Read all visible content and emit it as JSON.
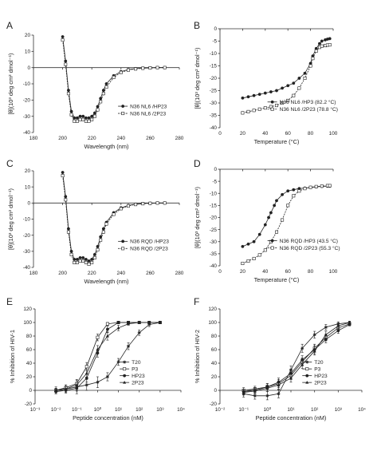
{
  "chart_data": [
    {
      "panel": "A",
      "type": "line",
      "xlabel": "Wavelength (nm)",
      "ylabel": "[θ](10³ deg cm² dmol⁻¹)",
      "xlim": [
        180,
        280
      ],
      "ylim": [
        -40,
        20
      ],
      "xticks": [
        180,
        200,
        220,
        240,
        260,
        280
      ],
      "yticks": [
        20,
        10,
        0,
        -10,
        -20,
        -30,
        -40
      ],
      "legend_position": "right",
      "series": [
        {
          "name": "N36 NL6 /HP23",
          "marker": "filled",
          "x": [
            200,
            202,
            204,
            206,
            208,
            210,
            212,
            214,
            216,
            218,
            220,
            222,
            224,
            226,
            228,
            230,
            235,
            240,
            245,
            250,
            255,
            260,
            265,
            270
          ],
          "y": [
            19,
            4,
            -14,
            -27,
            -31,
            -31,
            -30,
            -30,
            -31,
            -31,
            -30,
            -28,
            -24,
            -19,
            -14,
            -10,
            -5,
            -2.5,
            -1.2,
            -0.6,
            -0.3,
            -0.1,
            0,
            0
          ]
        },
        {
          "name": "N36 NL6 /2P23",
          "marker": "open",
          "x": [
            200,
            202,
            204,
            206,
            208,
            210,
            212,
            214,
            216,
            218,
            220,
            222,
            224,
            226,
            228,
            230,
            235,
            240,
            245,
            250,
            255,
            260,
            265,
            270
          ],
          "y": [
            17,
            2,
            -16,
            -29,
            -33,
            -33,
            -32,
            -32,
            -33,
            -33,
            -32,
            -30,
            -26,
            -21,
            -16,
            -12,
            -6,
            -3,
            -1.5,
            -0.8,
            -0.4,
            -0.2,
            0,
            0
          ]
        }
      ]
    },
    {
      "panel": "B",
      "type": "line",
      "xlabel": "Temperature (°C)",
      "ylabel": "[θ](10³ deg cm² dmol⁻¹)",
      "xlim": [
        0,
        100
      ],
      "ylim": [
        -40,
        0
      ],
      "xticks": [
        0,
        20,
        40,
        60,
        80,
        100
      ],
      "yticks": [
        0,
        -5,
        -10,
        -15,
        -20,
        -25,
        -30,
        -35,
        -40
      ],
      "legend_position": "bottom-right",
      "series": [
        {
          "name": "N36 NL6 /HP3 (82.2 °C)",
          "marker": "filled",
          "x": [
            20,
            25,
            30,
            35,
            40,
            45,
            50,
            55,
            60,
            65,
            70,
            75,
            80,
            82,
            85,
            88,
            90,
            93,
            95,
            97
          ],
          "y": [
            -28,
            -27.5,
            -27,
            -26.5,
            -26,
            -25.5,
            -25,
            -24,
            -23,
            -22,
            -20,
            -18,
            -14,
            -11,
            -8,
            -6,
            -5,
            -4.5,
            -4.2,
            -4
          ]
        },
        {
          "name": "N36 NL6 /2P23 (78.8 °C)",
          "marker": "open",
          "x": [
            20,
            25,
            30,
            35,
            40,
            45,
            50,
            55,
            60,
            65,
            70,
            75,
            80,
            82,
            85,
            88,
            90,
            93,
            95,
            97
          ],
          "y": [
            -34,
            -33.5,
            -33,
            -32.5,
            -32,
            -31.5,
            -31,
            -30,
            -29,
            -27,
            -24,
            -20,
            -15,
            -12,
            -9,
            -7.5,
            -7,
            -6.8,
            -6.6,
            -6.5
          ]
        }
      ]
    },
    {
      "panel": "C",
      "type": "line",
      "xlabel": "Wavelength (nm)",
      "ylabel": "[θ](10³ deg cm² dmol⁻¹)",
      "xlim": [
        180,
        280
      ],
      "ylim": [
        -40,
        20
      ],
      "xticks": [
        180,
        200,
        220,
        240,
        260,
        280
      ],
      "yticks": [
        20,
        10,
        0,
        -10,
        -20,
        -30,
        -40
      ],
      "legend_position": "right",
      "series": [
        {
          "name": "N36 RQD /HP23",
          "marker": "filled",
          "x": [
            200,
            202,
            204,
            206,
            208,
            210,
            212,
            214,
            216,
            218,
            220,
            222,
            224,
            226,
            228,
            230,
            235,
            240,
            245,
            250,
            255,
            260,
            265,
            270
          ],
          "y": [
            19,
            4,
            -16,
            -30,
            -35,
            -35,
            -34,
            -34,
            -35,
            -36,
            -35,
            -32,
            -27,
            -21,
            -16,
            -12,
            -6,
            -3,
            -1.5,
            -0.7,
            -0.3,
            -0.1,
            0,
            0
          ]
        },
        {
          "name": "N36 RQD /2P23",
          "marker": "open",
          "x": [
            200,
            202,
            204,
            206,
            208,
            210,
            212,
            214,
            216,
            218,
            220,
            222,
            224,
            226,
            228,
            230,
            235,
            240,
            245,
            250,
            255,
            260,
            265,
            270
          ],
          "y": [
            17,
            2,
            -18,
            -32,
            -37,
            -37,
            -36,
            -36,
            -37,
            -38,
            -37,
            -34,
            -29,
            -23,
            -18,
            -13,
            -7,
            -3.5,
            -1.8,
            -0.9,
            -0.4,
            -0.2,
            0,
            0
          ]
        }
      ]
    },
    {
      "panel": "D",
      "type": "line",
      "xlabel": "Temperature (°C)",
      "ylabel": "[θ](10³ deg cm² dmol⁻¹)",
      "xlim": [
        0,
        100
      ],
      "ylim": [
        -40,
        0
      ],
      "xticks": [
        0,
        20,
        40,
        60,
        80,
        100
      ],
      "yticks": [
        0,
        -5,
        -10,
        -15,
        -20,
        -25,
        -30,
        -35,
        -40
      ],
      "legend_position": "bottom-right",
      "series": [
        {
          "name": "N36 RQD /HP3 (43.5 °C)",
          "marker": "filled",
          "x": [
            20,
            25,
            30,
            35,
            40,
            43,
            45,
            48,
            50,
            55,
            60,
            65,
            70,
            75,
            80,
            85,
            90,
            95,
            97
          ],
          "y": [
            -32,
            -31,
            -30,
            -27,
            -23,
            -20,
            -18,
            -15,
            -13,
            -10.5,
            -9,
            -8.5,
            -8,
            -7.8,
            -7.5,
            -7.3,
            -7.1,
            -7,
            -7
          ]
        },
        {
          "name": "N36 RQD /2P23 (55.3 °C)",
          "marker": "open",
          "x": [
            20,
            25,
            30,
            35,
            40,
            45,
            50,
            55,
            60,
            65,
            70,
            75,
            80,
            85,
            90,
            95,
            97
          ],
          "y": [
            -39,
            -38,
            -37,
            -35.5,
            -33.5,
            -30,
            -26,
            -21,
            -15,
            -11,
            -9,
            -8,
            -7.5,
            -7.2,
            -7,
            -6.8,
            -6.8
          ]
        }
      ]
    },
    {
      "panel": "E",
      "type": "line",
      "xscale": "log",
      "xlabel": "Peptide concentration (nM)",
      "ylabel": "% Inhibition of HIV-1",
      "xlim": [
        0.001,
        10000
      ],
      "ylim": [
        -20,
        120
      ],
      "xticks": [
        "10⁻³",
        "10⁻²",
        "10⁻¹",
        "10⁰",
        "10¹",
        "10²",
        "10³",
        "10⁴"
      ],
      "yticks": [
        120,
        100,
        80,
        60,
        40,
        20,
        0,
        -20
      ],
      "legend_position": "right",
      "series": [
        {
          "name": "T20",
          "marker": "star",
          "x": [
            0.01,
            0.03,
            0.1,
            0.3,
            1,
            3,
            10,
            30,
            100,
            300,
            1000
          ],
          "y": [
            0,
            2,
            5,
            8,
            12,
            20,
            42,
            65,
            85,
            97,
            100
          ],
          "err": [
            5,
            6,
            10,
            8,
            8,
            6,
            5,
            5,
            4,
            3,
            0
          ]
        },
        {
          "name": "P3",
          "marker": "open",
          "x": [
            0.01,
            0.03,
            0.1,
            0.3,
            1,
            3,
            10,
            30,
            100,
            300,
            1000
          ],
          "y": [
            0,
            4,
            10,
            35,
            78,
            98,
            100,
            100,
            100,
            100,
            100
          ],
          "err": [
            3,
            4,
            6,
            6,
            5,
            2,
            0,
            0,
            0,
            0,
            0
          ]
        },
        {
          "name": "HP23",
          "marker": "filled",
          "x": [
            0.01,
            0.03,
            0.1,
            0.3,
            1,
            3,
            10,
            30,
            100,
            300,
            1000
          ],
          "y": [
            -2,
            0,
            3,
            18,
            55,
            90,
            100,
            100,
            100,
            100,
            100
          ],
          "err": [
            3,
            3,
            4,
            6,
            6,
            5,
            0,
            0,
            0,
            0,
            0
          ]
        },
        {
          "name": "2P23",
          "marker": "triangle",
          "x": [
            0.01,
            0.03,
            0.1,
            0.3,
            1,
            3,
            10,
            30,
            100,
            300,
            1000
          ],
          "y": [
            0,
            2,
            8,
            25,
            60,
            80,
            92,
            98,
            100,
            100,
            100
          ],
          "err": [
            3,
            3,
            4,
            6,
            6,
            6,
            4,
            2,
            0,
            0,
            0
          ]
        }
      ]
    },
    {
      "panel": "F",
      "type": "line",
      "xscale": "log",
      "xlabel": "Peptide concentration (nM)",
      "ylabel": "% Inhibition of HIV-2",
      "xlim": [
        0.01,
        10000
      ],
      "ylim": [
        -20,
        120
      ],
      "xticks": [
        "10⁻²",
        "10⁻¹",
        "10⁰",
        "10¹",
        "10²",
        "10³",
        "10⁴"
      ],
      "yticks": [
        120,
        100,
        80,
        60,
        40,
        20,
        0,
        -20
      ],
      "legend_position": "right",
      "series": [
        {
          "name": "T20",
          "marker": "star",
          "x": [
            0.1,
            0.3,
            1,
            3,
            10,
            30,
            100,
            300,
            1000,
            3000
          ],
          "y": [
            -5,
            -8,
            -8,
            -5,
            30,
            62,
            82,
            93,
            98,
            100
          ],
          "err": [
            5,
            5,
            6,
            6,
            6,
            6,
            5,
            4,
            3,
            0
          ]
        },
        {
          "name": "P3",
          "marker": "open",
          "x": [
            0.1,
            0.3,
            1,
            3,
            10,
            30,
            100,
            300,
            1000,
            3000
          ],
          "y": [
            0,
            2,
            5,
            10,
            22,
            42,
            62,
            78,
            92,
            98
          ],
          "err": [
            4,
            4,
            5,
            6,
            6,
            6,
            6,
            5,
            4,
            2
          ]
        },
        {
          "name": "HP23",
          "marker": "filled",
          "x": [
            0.1,
            0.3,
            1,
            3,
            10,
            30,
            100,
            300,
            1000,
            3000
          ],
          "y": [
            -2,
            0,
            5,
            12,
            25,
            45,
            60,
            75,
            88,
            97
          ],
          "err": [
            4,
            4,
            5,
            6,
            6,
            6,
            6,
            5,
            4,
            2
          ]
        },
        {
          "name": "2P23",
          "marker": "triangle",
          "x": [
            0.1,
            0.3,
            1,
            3,
            10,
            30,
            100,
            300,
            1000,
            3000
          ],
          "y": [
            -3,
            -1,
            3,
            8,
            18,
            38,
            58,
            82,
            95,
            100
          ],
          "err": [
            4,
            4,
            5,
            6,
            6,
            6,
            6,
            5,
            4,
            2
          ]
        }
      ]
    }
  ]
}
